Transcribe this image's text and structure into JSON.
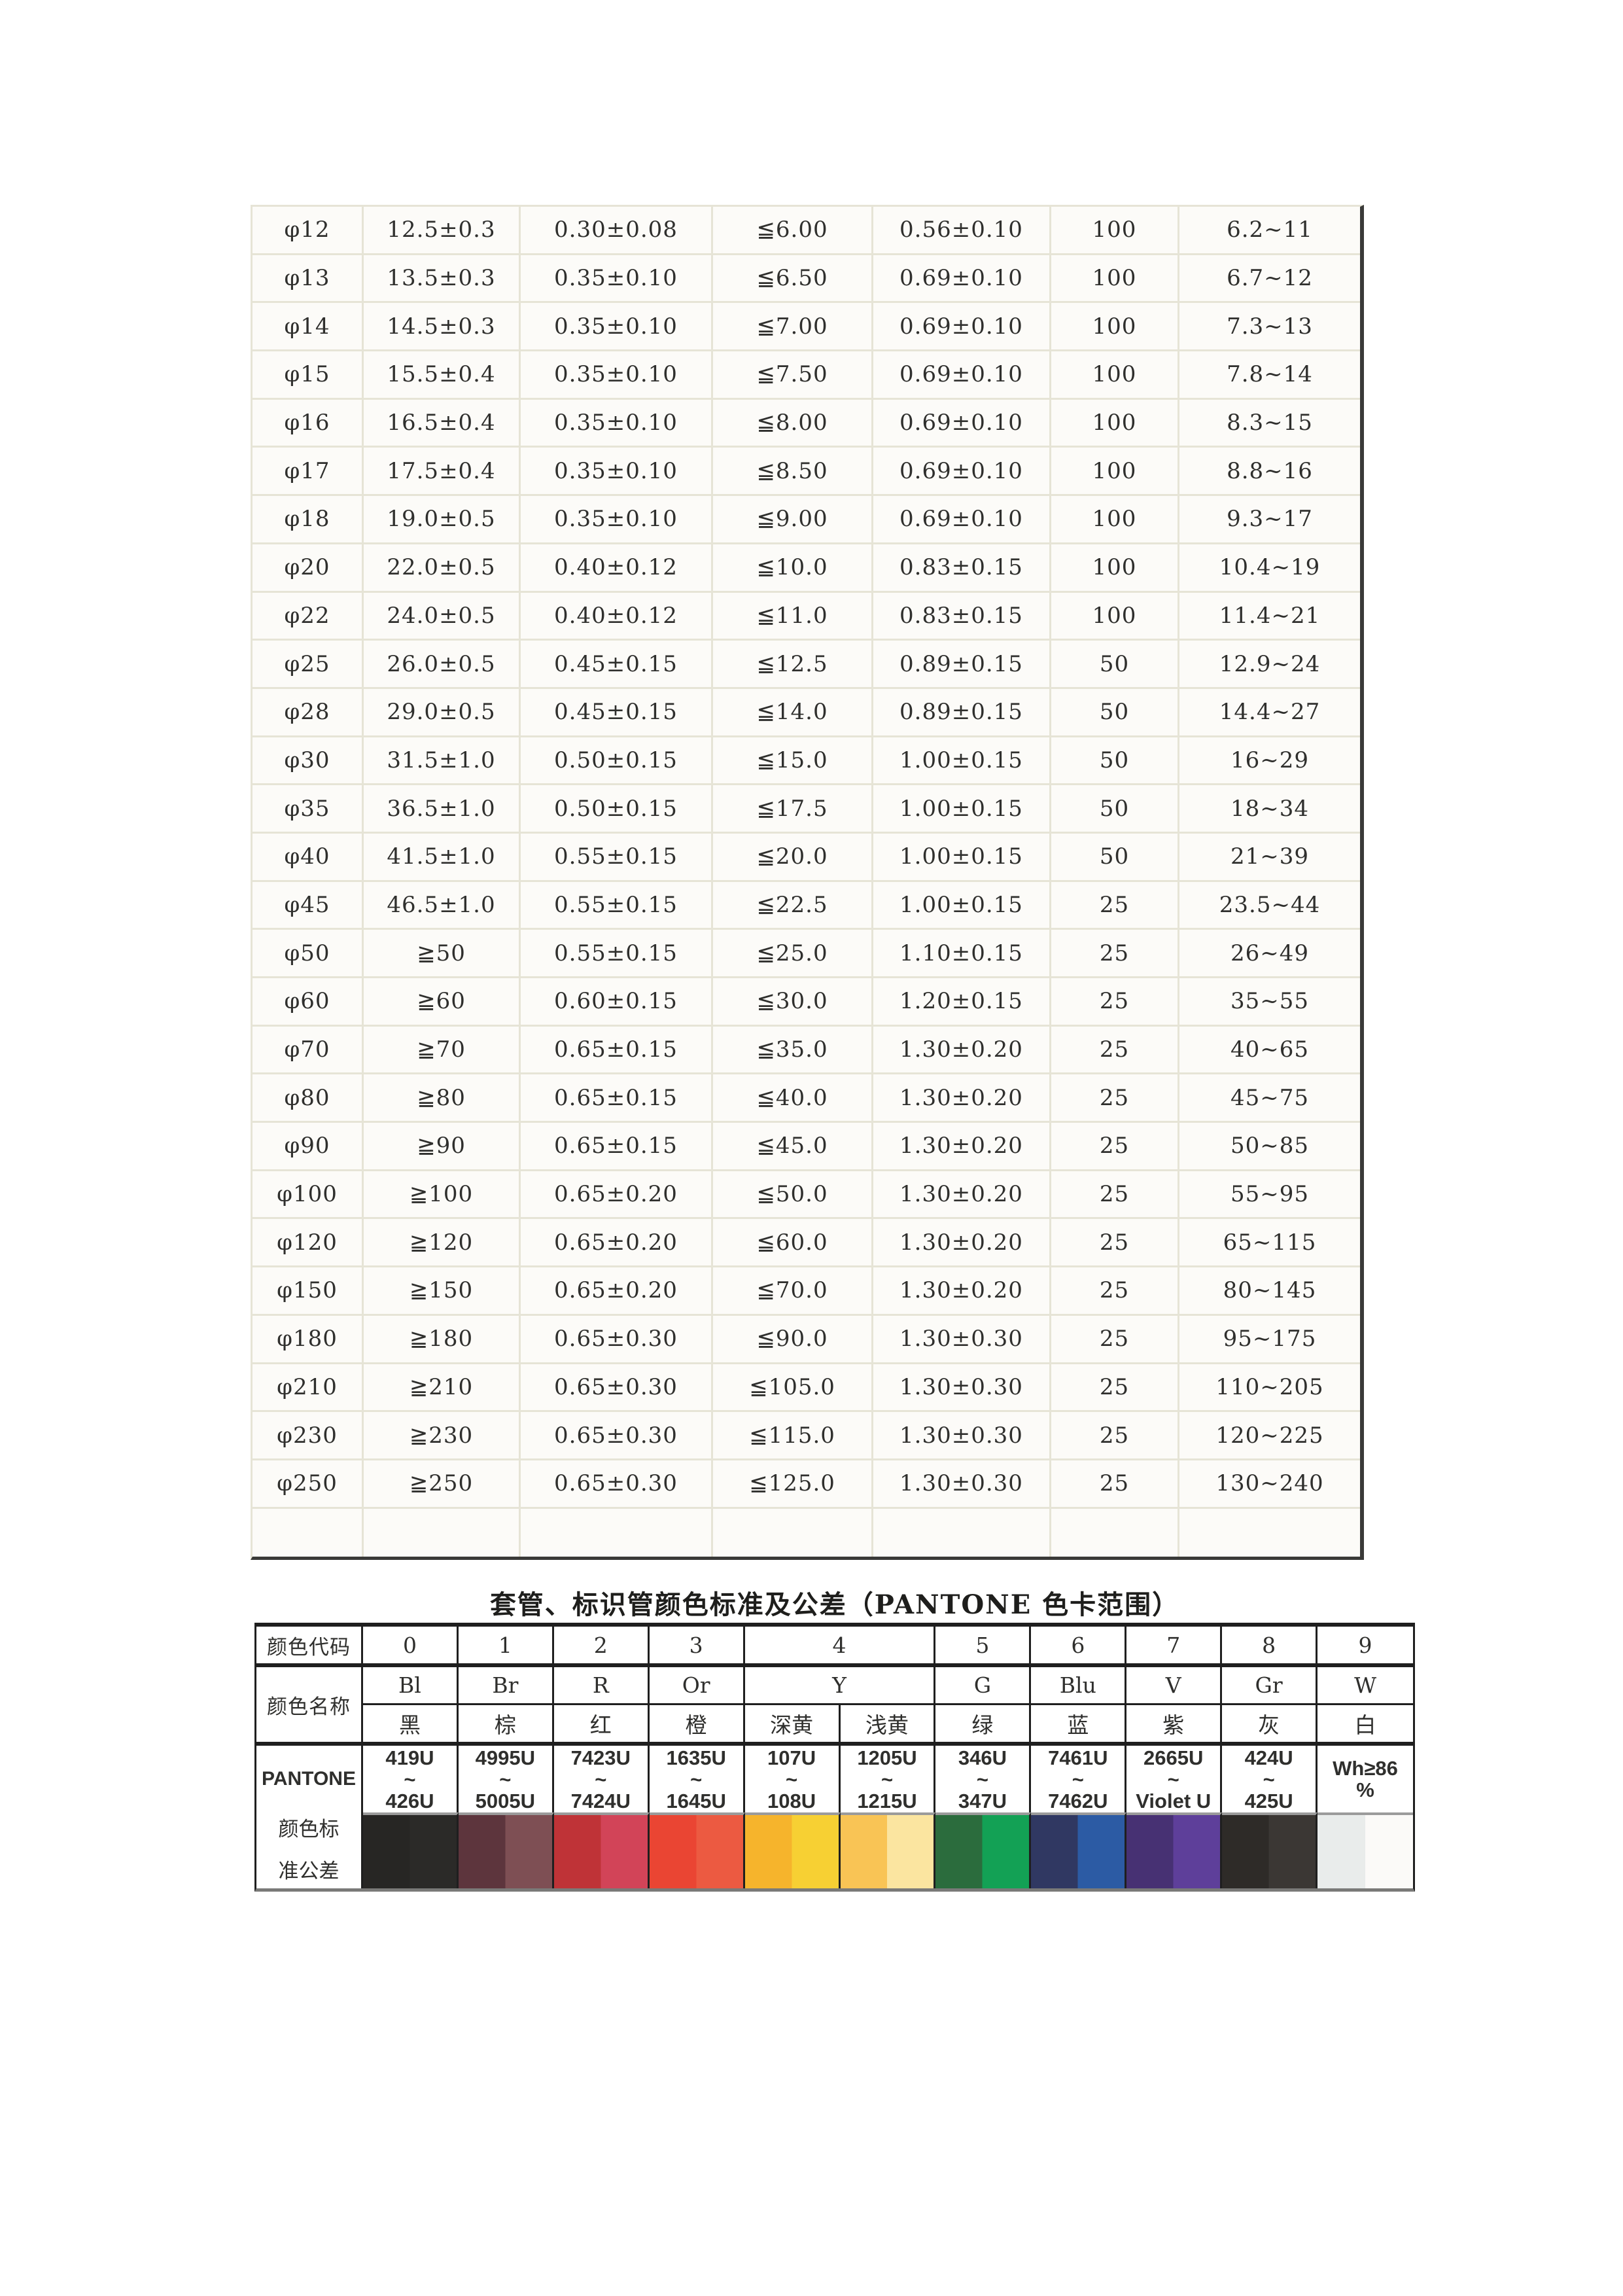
{
  "main_table": {
    "rows": [
      [
        "φ12",
        "12.5±0.3",
        "0.30±0.08",
        "≦6.00",
        "0.56±0.10",
        "100",
        "6.2~11"
      ],
      [
        "φ13",
        "13.5±0.3",
        "0.35±0.10",
        "≦6.50",
        "0.69±0.10",
        "100",
        "6.7~12"
      ],
      [
        "φ14",
        "14.5±0.3",
        "0.35±0.10",
        "≦7.00",
        "0.69±0.10",
        "100",
        "7.3~13"
      ],
      [
        "φ15",
        "15.5±0.4",
        "0.35±0.10",
        "≦7.50",
        "0.69±0.10",
        "100",
        "7.8~14"
      ],
      [
        "φ16",
        "16.5±0.4",
        "0.35±0.10",
        "≦8.00",
        "0.69±0.10",
        "100",
        "8.3~15"
      ],
      [
        "φ17",
        "17.5±0.4",
        "0.35±0.10",
        "≦8.50",
        "0.69±0.10",
        "100",
        "8.8~16"
      ],
      [
        "φ18",
        "19.0±0.5",
        "0.35±0.10",
        "≦9.00",
        "0.69±0.10",
        "100",
        "9.3~17"
      ],
      [
        "φ20",
        "22.0±0.5",
        "0.40±0.12",
        "≦10.0",
        "0.83±0.15",
        "100",
        "10.4~19"
      ],
      [
        "φ22",
        "24.0±0.5",
        "0.40±0.12",
        "≦11.0",
        "0.83±0.15",
        "100",
        "11.4~21"
      ],
      [
        "φ25",
        "26.0±0.5",
        "0.45±0.15",
        "≦12.5",
        "0.89±0.15",
        "50",
        "12.9~24"
      ],
      [
        "φ28",
        "29.0±0.5",
        "0.45±0.15",
        "≦14.0",
        "0.89±0.15",
        "50",
        "14.4~27"
      ],
      [
        "φ30",
        "31.5±1.0",
        "0.50±0.15",
        "≦15.0",
        "1.00±0.15",
        "50",
        "16~29"
      ],
      [
        "φ35",
        "36.5±1.0",
        "0.50±0.15",
        "≦17.5",
        "1.00±0.15",
        "50",
        "18~34"
      ],
      [
        "φ40",
        "41.5±1.0",
        "0.55±0.15",
        "≦20.0",
        "1.00±0.15",
        "50",
        "21~39"
      ],
      [
        "φ45",
        "46.5±1.0",
        "0.55±0.15",
        "≦22.5",
        "1.00±0.15",
        "25",
        "23.5~44"
      ],
      [
        "φ50",
        "≧50",
        "0.55±0.15",
        "≦25.0",
        "1.10±0.15",
        "25",
        "26~49"
      ],
      [
        "φ60",
        "≧60",
        "0.60±0.15",
        "≦30.0",
        "1.20±0.15",
        "25",
        "35~55"
      ],
      [
        "φ70",
        "≧70",
        "0.65±0.15",
        "≦35.0",
        "1.30±0.20",
        "25",
        "40~65"
      ],
      [
        "φ80",
        "≧80",
        "0.65±0.15",
        "≦40.0",
        "1.30±0.20",
        "25",
        "45~75"
      ],
      [
        "φ90",
        "≧90",
        "0.65±0.15",
        "≦45.0",
        "1.30±0.20",
        "25",
        "50~85"
      ],
      [
        "φ100",
        "≧100",
        "0.65±0.20",
        "≦50.0",
        "1.30±0.20",
        "25",
        "55~95"
      ],
      [
        "φ120",
        "≧120",
        "0.65±0.20",
        "≦60.0",
        "1.30±0.20",
        "25",
        "65~115"
      ],
      [
        "φ150",
        "≧150",
        "0.65±0.20",
        "≦70.0",
        "1.30±0.20",
        "25",
        "80~145"
      ],
      [
        "φ180",
        "≧180",
        "0.65±0.30",
        "≦90.0",
        "1.30±0.30",
        "25",
        "95~175"
      ],
      [
        "φ210",
        "≧210",
        "0.65±0.30",
        "≦105.0",
        "1.30±0.30",
        "25",
        "110~205"
      ],
      [
        "φ230",
        "≧230",
        "0.65±0.30",
        "≦115.0",
        "1.30±0.30",
        "25",
        "120~225"
      ],
      [
        "φ250",
        "≧250",
        "0.65±0.30",
        "≦125.0",
        "1.30±0.30",
        "25",
        "130~240"
      ],
      [
        "",
        "",
        "",
        "",
        "",
        "",
        ""
      ]
    ]
  },
  "color_table": {
    "title": "套管、标识管颜色标准及公差（PANTONE 色卡范围）",
    "labels": {
      "code": "颜色代码",
      "name": "颜色名称",
      "pantone": "PANTONE",
      "tolerance": "颜色标\n准公差"
    },
    "codes": [
      "0",
      "1",
      "2",
      "3",
      "4",
      "5",
      "6",
      "7",
      "8",
      "9"
    ],
    "letters": [
      "Bl",
      "Br",
      "R",
      "Or",
      "Y",
      "G",
      "Blu",
      "V",
      "Gr",
      "W"
    ],
    "names_cn": [
      "黑",
      "棕",
      "红",
      "橙",
      "深黄",
      "浅黄",
      "绿",
      "蓝",
      "紫",
      "灰",
      "白"
    ],
    "pantone": [
      "419U\n~\n426U",
      "4995U\n~\n5005U",
      "7423U\n~\n7424U",
      "1635U\n~\n1645U",
      "107U\n~\n108U",
      "1205U\n~\n1215U",
      "346U\n~\n347U",
      "7461U\n~\n7462U",
      "2665U\n~\nViolet U",
      "424U\n~\n425U",
      "Wh≥86\n%"
    ],
    "swatches": [
      {
        "name": "black",
        "left": "#272624",
        "right": "#2b2a28"
      },
      {
        "name": "brown",
        "left": "#5d353d",
        "right": "#7e4f54"
      },
      {
        "name": "red",
        "left": "#bf3337",
        "right": "#d24458"
      },
      {
        "name": "orange",
        "left": "#ea4533",
        "right": "#ec5a41"
      },
      {
        "name": "deep-yellow",
        "left": "#f6b42c",
        "right": "#f7d033"
      },
      {
        "name": "light-yellow",
        "left": "#f9c455",
        "right": "#fbe5a0"
      },
      {
        "name": "green",
        "left": "#2b6c3d",
        "right": "#13a155"
      },
      {
        "name": "blue",
        "left": "#303862",
        "right": "#2c5ba4"
      },
      {
        "name": "violet",
        "left": "#473173",
        "right": "#5e3f9a"
      },
      {
        "name": "gray",
        "left": "#2e2b28",
        "right": "#3b3734"
      },
      {
        "name": "white",
        "left": "#e9eceb",
        "right": "#fbfaf8"
      }
    ]
  }
}
